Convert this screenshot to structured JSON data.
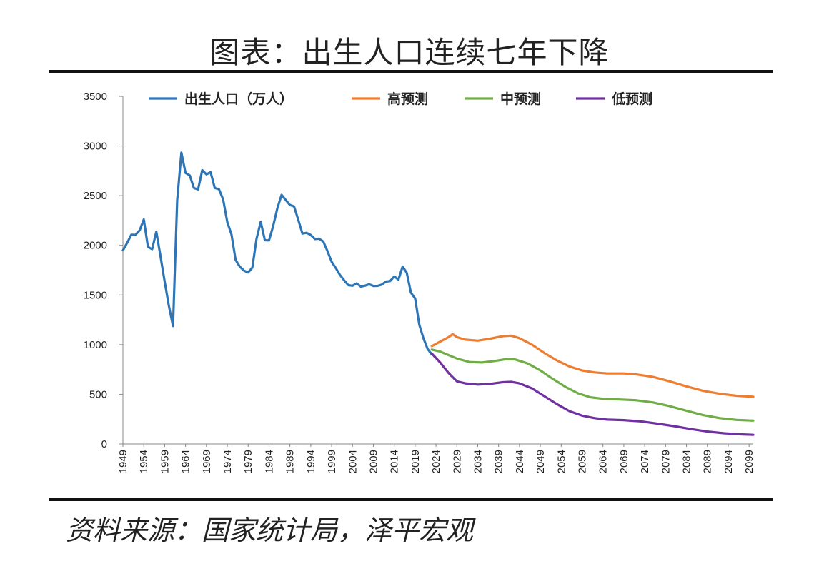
{
  "title": "图表：出生人口连续七年下降",
  "source": "资料来源：国家统计局，泽平宏观",
  "chart_data": {
    "type": "line",
    "ylim": [
      0,
      3500
    ],
    "yticks": [
      0,
      500,
      1000,
      1500,
      2000,
      2500,
      3000,
      3500
    ],
    "xlim": [
      1949,
      2100
    ],
    "xtick_labels": [
      "1949",
      "1954",
      "1959",
      "1964",
      "1969",
      "1974",
      "1979",
      "1984",
      "1989",
      "1994",
      "1999",
      "2004",
      "2009",
      "2014",
      "2019",
      "2024",
      "2029",
      "2034",
      "2039",
      "2044",
      "2049",
      "2054",
      "2059",
      "2064",
      "2069",
      "2074",
      "2079",
      "2084",
      "2089",
      "2094",
      "2099"
    ],
    "legend": [
      "出生人口（万人）",
      "高预测",
      "中预测",
      "低预测"
    ],
    "series": [
      {
        "name": "出生人口（万人）",
        "color": "#2e75b6",
        "points": [
          [
            1949,
            1950
          ],
          [
            1950,
            2023
          ],
          [
            1951,
            2107
          ],
          [
            1952,
            2105
          ],
          [
            1953,
            2151
          ],
          [
            1954,
            2260
          ],
          [
            1955,
            1984
          ],
          [
            1956,
            1961
          ],
          [
            1957,
            2138
          ],
          [
            1958,
            1889
          ],
          [
            1959,
            1635
          ],
          [
            1960,
            1389
          ],
          [
            1961,
            1187
          ],
          [
            1962,
            2451
          ],
          [
            1963,
            2934
          ],
          [
            1964,
            2729
          ],
          [
            1965,
            2704
          ],
          [
            1966,
            2577
          ],
          [
            1967,
            2563
          ],
          [
            1968,
            2757
          ],
          [
            1969,
            2715
          ],
          [
            1970,
            2736
          ],
          [
            1971,
            2578
          ],
          [
            1972,
            2566
          ],
          [
            1973,
            2463
          ],
          [
            1974,
            2235
          ],
          [
            1975,
            2109
          ],
          [
            1976,
            1853
          ],
          [
            1977,
            1786
          ],
          [
            1978,
            1745
          ],
          [
            1979,
            1727
          ],
          [
            1980,
            1776
          ],
          [
            1981,
            2064
          ],
          [
            1982,
            2237
          ],
          [
            1983,
            2052
          ],
          [
            1984,
            2050
          ],
          [
            1985,
            2196
          ],
          [
            1986,
            2374
          ],
          [
            1987,
            2508
          ],
          [
            1988,
            2457
          ],
          [
            1989,
            2407
          ],
          [
            1990,
            2391
          ],
          [
            1991,
            2258
          ],
          [
            1992,
            2119
          ],
          [
            1993,
            2126
          ],
          [
            1994,
            2104
          ],
          [
            1995,
            2063
          ],
          [
            1996,
            2067
          ],
          [
            1997,
            2038
          ],
          [
            1998,
            1942
          ],
          [
            1999,
            1834
          ],
          [
            2000,
            1771
          ],
          [
            2001,
            1702
          ],
          [
            2002,
            1647
          ],
          [
            2003,
            1599
          ],
          [
            2004,
            1593
          ],
          [
            2005,
            1617
          ],
          [
            2006,
            1585
          ],
          [
            2007,
            1594
          ],
          [
            2008,
            1608
          ],
          [
            2009,
            1591
          ],
          [
            2010,
            1592
          ],
          [
            2011,
            1604
          ],
          [
            2012,
            1635
          ],
          [
            2013,
            1640
          ],
          [
            2014,
            1687
          ],
          [
            2015,
            1655
          ],
          [
            2016,
            1786
          ],
          [
            2017,
            1723
          ],
          [
            2018,
            1523
          ],
          [
            2019,
            1465
          ],
          [
            2020,
            1200
          ],
          [
            2021,
            1062
          ],
          [
            2022,
            956
          ],
          [
            2023,
            902
          ]
        ]
      },
      {
        "name": "高预测",
        "color": "#ed7d31",
        "points": [
          [
            2023,
            985
          ],
          [
            2025,
            1030
          ],
          [
            2027,
            1075
          ],
          [
            2028,
            1105
          ],
          [
            2029,
            1075
          ],
          [
            2031,
            1050
          ],
          [
            2034,
            1040
          ],
          [
            2037,
            1060
          ],
          [
            2040,
            1085
          ],
          [
            2042,
            1090
          ],
          [
            2044,
            1065
          ],
          [
            2047,
            1000
          ],
          [
            2050,
            915
          ],
          [
            2053,
            840
          ],
          [
            2056,
            780
          ],
          [
            2059,
            740
          ],
          [
            2062,
            720
          ],
          [
            2065,
            710
          ],
          [
            2069,
            710
          ],
          [
            2072,
            700
          ],
          [
            2076,
            675
          ],
          [
            2080,
            630
          ],
          [
            2084,
            580
          ],
          [
            2088,
            535
          ],
          [
            2092,
            505
          ],
          [
            2096,
            485
          ],
          [
            2100,
            475
          ]
        ]
      },
      {
        "name": "中预测",
        "color": "#70ad47",
        "points": [
          [
            2023,
            950
          ],
          [
            2025,
            930
          ],
          [
            2027,
            895
          ],
          [
            2029,
            860
          ],
          [
            2032,
            825
          ],
          [
            2035,
            820
          ],
          [
            2038,
            835
          ],
          [
            2041,
            855
          ],
          [
            2043,
            850
          ],
          [
            2046,
            810
          ],
          [
            2049,
            740
          ],
          [
            2052,
            655
          ],
          [
            2055,
            575
          ],
          [
            2058,
            510
          ],
          [
            2061,
            470
          ],
          [
            2064,
            455
          ],
          [
            2068,
            448
          ],
          [
            2072,
            440
          ],
          [
            2076,
            418
          ],
          [
            2080,
            380
          ],
          [
            2084,
            335
          ],
          [
            2088,
            290
          ],
          [
            2092,
            260
          ],
          [
            2096,
            242
          ],
          [
            2100,
            235
          ]
        ]
      },
      {
        "name": "低预测",
        "color": "#7030a0",
        "points": [
          [
            2023,
            910
          ],
          [
            2025,
            820
          ],
          [
            2027,
            715
          ],
          [
            2029,
            630
          ],
          [
            2031,
            610
          ],
          [
            2034,
            598
          ],
          [
            2037,
            605
          ],
          [
            2040,
            622
          ],
          [
            2042,
            625
          ],
          [
            2044,
            610
          ],
          [
            2047,
            560
          ],
          [
            2050,
            480
          ],
          [
            2053,
            400
          ],
          [
            2056,
            330
          ],
          [
            2059,
            285
          ],
          [
            2062,
            260
          ],
          [
            2065,
            245
          ],
          [
            2069,
            240
          ],
          [
            2073,
            228
          ],
          [
            2077,
            205
          ],
          [
            2081,
            180
          ],
          [
            2085,
            150
          ],
          [
            2089,
            125
          ],
          [
            2093,
            108
          ],
          [
            2097,
            97
          ],
          [
            2100,
            92
          ]
        ]
      }
    ]
  }
}
